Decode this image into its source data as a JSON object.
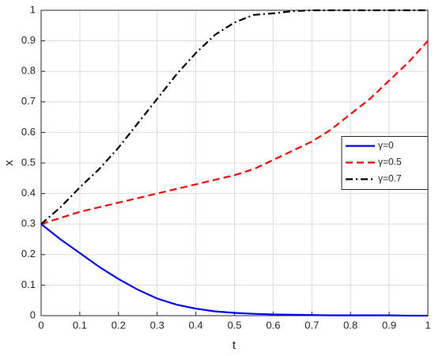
{
  "chart_data": {
    "type": "line",
    "xlabel": "t",
    "ylabel": "x",
    "x": [
      0,
      0.05,
      0.1,
      0.15,
      0.2,
      0.25,
      0.3,
      0.35,
      0.4,
      0.45,
      0.5,
      0.55,
      0.6,
      0.65,
      0.7,
      0.75,
      0.8,
      0.85,
      0.9,
      0.95,
      1
    ],
    "series": [
      {
        "name": "γ=0",
        "color": "#0000ff",
        "linestyle": "solid",
        "values": [
          0.3,
          0.25,
          0.205,
          0.16,
          0.12,
          0.085,
          0.056,
          0.036,
          0.023,
          0.014,
          0.009,
          0.006,
          0.004,
          0.003,
          0.002,
          0.001,
          0.001,
          0.001,
          0.001,
          0,
          0
        ]
      },
      {
        "name": "γ=0.5",
        "color": "#ff0000",
        "linestyle": "dashed",
        "values": [
          0.3,
          0.32,
          0.34,
          0.355,
          0.37,
          0.385,
          0.4,
          0.415,
          0.43,
          0.445,
          0.46,
          0.48,
          0.51,
          0.54,
          0.57,
          0.61,
          0.66,
          0.71,
          0.77,
          0.83,
          0.9
        ]
      },
      {
        "name": "γ=0.7",
        "color": "#000000",
        "linestyle": "dashdot",
        "values": [
          0.3,
          0.355,
          0.42,
          0.48,
          0.55,
          0.63,
          0.71,
          0.79,
          0.86,
          0.92,
          0.96,
          0.985,
          0.99,
          0.997,
          1,
          1,
          1,
          1,
          1,
          1,
          1
        ]
      }
    ],
    "xlim": [
      0,
      1
    ],
    "xticks": [
      0,
      0.1,
      0.2,
      0.3,
      0.4,
      0.5,
      0.6,
      0.7,
      0.8,
      0.9,
      1
    ],
    "ylim": [
      0,
      1
    ],
    "yticks": [
      0,
      0.1,
      0.2,
      0.3,
      0.4,
      0.5,
      0.6,
      0.7,
      0.8,
      0.9,
      1
    ],
    "grid": true,
    "legend": "east"
  }
}
